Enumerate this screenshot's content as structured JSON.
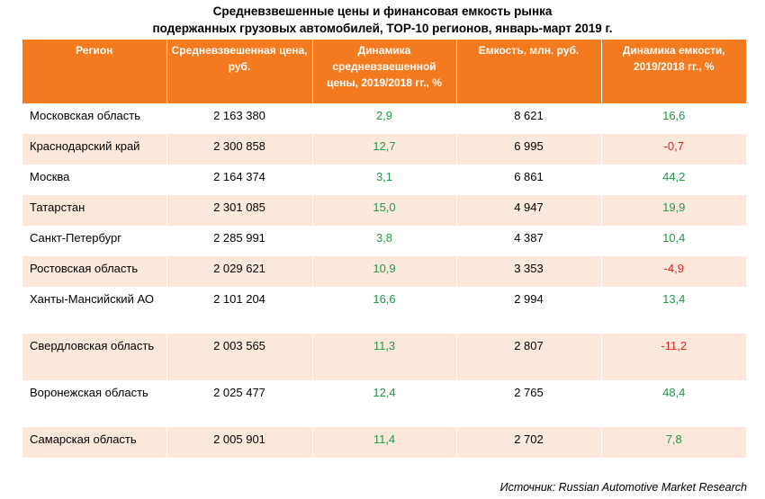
{
  "title": {
    "line1": "Средневзвешенные цены и финансовая емкость рынка",
    "line2": "подержанных грузовых автомобилей, TOP-10 регионов, январь-март 2019 г."
  },
  "table": {
    "headers": [
      "Регион",
      "Средневзвешенная цена, руб.",
      "Динамика средневзвешенной цены, 2019/2018 гг., %",
      "Емкость, млн. руб.",
      "Динамика емкости, 2019/2018 гг., %"
    ],
    "rows": [
      {
        "region": "Московская область",
        "price": "2 163 380",
        "price_change": "2,9",
        "capacity": "8 621",
        "capacity_change": "16,6"
      },
      {
        "region": "Краснодарский край",
        "price": "2 300 858",
        "price_change": "12,7",
        "capacity": "6 995",
        "capacity_change": "-0,7"
      },
      {
        "region": "Москва",
        "price": "2 164 374",
        "price_change": "3,1",
        "capacity": "6 861",
        "capacity_change": "44,2"
      },
      {
        "region": "Татарстан",
        "price": "2 301 085",
        "price_change": "15,0",
        "capacity": "4 947",
        "capacity_change": "19,9"
      },
      {
        "region": "Санкт-Петербург",
        "price": "2 285 991",
        "price_change": "3,8",
        "capacity": "4 387",
        "capacity_change": "10,4"
      },
      {
        "region": "Ростовская область",
        "price": "2 029 621",
        "price_change": "10,9",
        "capacity": "3 353",
        "capacity_change": "-4,9"
      },
      {
        "region": "Ханты-Мансийский АО",
        "price": "2 101 204",
        "price_change": "16,6",
        "capacity": "2 994",
        "capacity_change": "13,4"
      },
      {
        "region": "Свердловская область",
        "price": "2 003 565",
        "price_change": "11,3",
        "capacity": "2 807",
        "capacity_change": "-11,2"
      },
      {
        "region": "Воронежская область",
        "price": "2 025 477",
        "price_change": "12,4",
        "capacity": "2 765",
        "capacity_change": "48,4"
      },
      {
        "region": "Самарская область",
        "price": "2 005 901",
        "price_change": "11,4",
        "capacity": "2 702",
        "capacity_change": "7,8"
      }
    ]
  },
  "colors": {
    "header_bg": "#f47a20",
    "stripe": "#fde9dc",
    "positive": "#1f9a46",
    "negative": "#e02020"
  },
  "source": "Источник: Russian Automotive Market Research"
}
